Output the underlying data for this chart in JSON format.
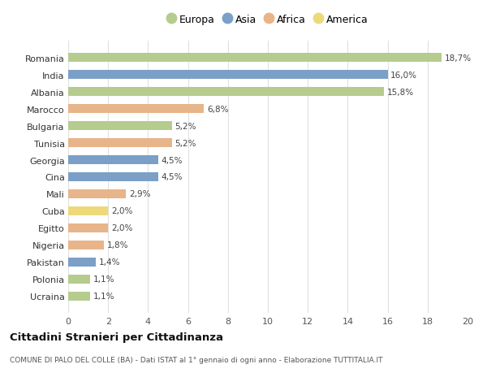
{
  "countries": [
    "Romania",
    "India",
    "Albania",
    "Marocco",
    "Bulgaria",
    "Tunisia",
    "Georgia",
    "Cina",
    "Mali",
    "Cuba",
    "Egitto",
    "Nigeria",
    "Pakistan",
    "Polonia",
    "Ucraina"
  ],
  "values": [
    18.7,
    16.0,
    15.8,
    6.8,
    5.2,
    5.2,
    4.5,
    4.5,
    2.9,
    2.0,
    2.0,
    1.8,
    1.4,
    1.1,
    1.1
  ],
  "labels": [
    "18,7%",
    "16,0%",
    "15,8%",
    "6,8%",
    "5,2%",
    "5,2%",
    "4,5%",
    "4,5%",
    "2,9%",
    "2,0%",
    "2,0%",
    "1,8%",
    "1,4%",
    "1,1%",
    "1,1%"
  ],
  "continents": [
    "Europa",
    "Asia",
    "Europa",
    "Africa",
    "Europa",
    "Africa",
    "Asia",
    "Asia",
    "Africa",
    "America",
    "Africa",
    "Africa",
    "Asia",
    "Europa",
    "Europa"
  ],
  "colors": {
    "Europa": "#b5cc8e",
    "Asia": "#7b9fc7",
    "Africa": "#e8b48a",
    "America": "#edd97a"
  },
  "legend_order": [
    "Europa",
    "Asia",
    "Africa",
    "America"
  ],
  "title": "Cittadini Stranieri per Cittadinanza",
  "subtitle": "COMUNE DI PALO DEL COLLE (BA) - Dati ISTAT al 1° gennaio di ogni anno - Elaborazione TUTTITALIA.IT",
  "xlim": [
    0,
    20
  ],
  "xticks": [
    0,
    2,
    4,
    6,
    8,
    10,
    12,
    14,
    16,
    18,
    20
  ],
  "background_color": "#ffffff",
  "grid_color": "#e0e0e0",
  "bar_height": 0.55
}
